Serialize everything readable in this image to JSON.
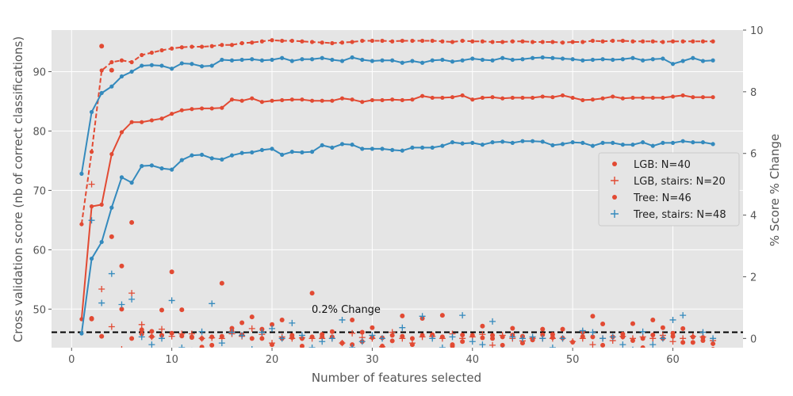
{
  "chart_data": {
    "type": "line",
    "xlabel": "Number of features selected",
    "ylabel": "Cross validation score (nb of correct classifications)",
    "y2label": "% Score % Change",
    "xlim": [
      -2,
      67
    ],
    "ylim": [
      43.5,
      97
    ],
    "y2lim": [
      -0.3,
      10
    ],
    "x_ticks": [
      0,
      10,
      20,
      30,
      40,
      50,
      60
    ],
    "y_ticks": [
      50,
      60,
      70,
      80,
      90
    ],
    "y2_ticks": [
      0,
      2,
      4,
      6,
      8,
      10
    ],
    "grid": true,
    "legend": {
      "position": "center-right",
      "entries": [
        {
          "label": "LGB: N=40",
          "marker": "dot",
          "color": "#E24A33"
        },
        {
          "label": "LGB, stairs: N=20",
          "marker": "plus",
          "color": "#E24A33"
        },
        {
          "label": "Tree: N=46",
          "marker": "dot",
          "color": "#E24A33"
        },
        {
          "label": "Tree, stairs: N=48",
          "marker": "plus",
          "color": "#348ABD"
        }
      ]
    },
    "reference_line": {
      "y2": 0.2,
      "label": "0.2% Change"
    },
    "x": [
      1,
      2,
      3,
      4,
      5,
      6,
      7,
      8,
      9,
      10,
      11,
      12,
      13,
      14,
      15,
      16,
      17,
      18,
      19,
      20,
      21,
      22,
      23,
      24,
      25,
      26,
      27,
      28,
      29,
      30,
      31,
      32,
      33,
      34,
      35,
      36,
      37,
      38,
      39,
      40,
      41,
      42,
      43,
      44,
      45,
      46,
      47,
      48,
      49,
      50,
      51,
      52,
      53,
      54,
      55,
      56,
      57,
      58,
      59,
      60,
      61,
      62,
      63,
      64
    ],
    "series": [
      {
        "name": "",
        "axis": "y",
        "color": "#E24A33",
        "style": "dashed",
        "values": [
          64.3,
          76.5,
          90.2,
          91.6,
          91.9,
          91.6,
          92.8,
          93.2,
          93.6,
          93.9,
          94.1,
          94.2,
          94.2,
          94.3,
          94.5,
          94.5,
          94.8,
          94.9,
          95.1,
          95.3,
          95.2,
          95.2,
          95.1,
          95.0,
          94.9,
          94.8,
          94.9,
          95.0,
          95.2,
          95.2,
          95.2,
          95.1,
          95.2,
          95.2,
          95.2,
          95.2,
          95.1,
          95.0,
          95.2,
          95.1,
          95.1,
          95.0,
          95.0,
          95.1,
          95.1,
          95.0,
          95.0,
          95.0,
          94.9,
          95.0,
          95.0,
          95.2,
          95.1,
          95.2,
          95.2,
          95.1,
          95.1,
          95.1,
          95.0,
          95.1,
          95.1,
          95.1,
          95.1,
          95.1
        ]
      },
      {
        "name": "",
        "axis": "y",
        "color": "#348ABD",
        "style": "solid",
        "values": [
          72.8,
          83.2,
          86.4,
          87.5,
          89.2,
          90.0,
          91.0,
          91.1,
          91.0,
          90.5,
          91.4,
          91.3,
          90.9,
          91.0,
          92.0,
          91.9,
          92.0,
          92.1,
          91.9,
          92.0,
          92.3,
          91.8,
          92.1,
          92.1,
          92.3,
          92.0,
          91.8,
          92.4,
          92.0,
          91.8,
          91.9,
          91.9,
          91.5,
          91.8,
          91.5,
          91.9,
          92.0,
          91.7,
          91.9,
          92.2,
          92.0,
          91.9,
          92.3,
          92.0,
          92.1,
          92.3,
          92.4,
          92.3,
          92.2,
          92.1,
          91.9,
          92.0,
          92.1,
          92.0,
          92.1,
          92.3,
          91.9,
          92.1,
          92.2,
          91.3,
          91.8,
          92.3,
          91.8,
          91.9
        ]
      },
      {
        "name": "",
        "axis": "y",
        "color": "#E24A33",
        "style": "solid",
        "values": [
          48.3,
          67.3,
          67.6,
          76.1,
          79.8,
          81.5,
          81.5,
          81.8,
          82.1,
          82.9,
          83.5,
          83.7,
          83.8,
          83.8,
          83.9,
          85.3,
          85.1,
          85.5,
          84.9,
          85.1,
          85.2,
          85.3,
          85.3,
          85.1,
          85.1,
          85.1,
          85.5,
          85.3,
          84.9,
          85.2,
          85.2,
          85.3,
          85.2,
          85.3,
          85.9,
          85.6,
          85.6,
          85.7,
          86.0,
          85.3,
          85.6,
          85.7,
          85.5,
          85.6,
          85.6,
          85.6,
          85.8,
          85.7,
          86.0,
          85.6,
          85.2,
          85.3,
          85.5,
          85.8,
          85.5,
          85.6,
          85.6,
          85.6,
          85.6,
          85.8,
          86.0,
          85.7,
          85.7,
          85.7
        ]
      },
      {
        "name": "",
        "axis": "y",
        "color": "#348ABD",
        "style": "solid",
        "values": [
          45.9,
          58.5,
          61.3,
          67.1,
          72.2,
          71.3,
          74.1,
          74.2,
          73.7,
          73.5,
          75.1,
          75.9,
          76.0,
          75.4,
          75.2,
          75.9,
          76.3,
          76.4,
          76.8,
          77.0,
          76.0,
          76.5,
          76.4,
          76.5,
          77.6,
          77.2,
          77.8,
          77.7,
          77.0,
          77.0,
          77.0,
          76.8,
          76.7,
          77.2,
          77.2,
          77.2,
          77.5,
          78.1,
          77.9,
          78.0,
          77.7,
          78.1,
          78.2,
          78.0,
          78.3,
          78.3,
          78.2,
          77.6,
          77.8,
          78.1,
          78.0,
          77.5,
          78.0,
          78.0,
          77.7,
          77.7,
          78.1,
          77.5,
          78.0,
          78.0,
          78.3,
          78.1,
          78.1,
          77.8
        ]
      },
      {
        "name": "LGB: N=40",
        "axis": "y2",
        "marker": "dot",
        "color": "#E24A33",
        "values": [
          null,
          0.63,
          9.48,
          8.7,
          0.95,
          0.0,
          0.15,
          0.06,
          0.1,
          0.17,
          0.08,
          0.05,
          -0.28,
          0.05,
          0.07,
          0.23,
          0.12,
          0.0,
          0.3,
          -0.2,
          0.0,
          0.03,
          0.0,
          0.05,
          0.13,
          0.05,
          -0.15,
          -0.2,
          0.2,
          0.03,
          0.02,
          -0.08,
          0.07,
          0.0,
          0.1,
          0.12,
          0.05,
          -0.2,
          -0.1,
          0.1,
          0.02,
          0.0,
          0.05,
          0.11,
          0.07,
          0.0,
          0.12,
          0.03,
          0.01,
          -0.12,
          0.06,
          0.05,
          -0.22,
          0.05,
          0.14,
          -0.07,
          0.0,
          0.11,
          0.0,
          0.07,
          -0.13,
          0.05,
          0.03,
          -0.17
        ]
      },
      {
        "name": "LGB, stairs: N=20",
        "axis": "y2",
        "marker": "plus",
        "color": "#E24A33",
        "values": [
          null,
          5.0,
          1.6,
          0.38,
          -0.35,
          1.47,
          0.45,
          0.05,
          0.3,
          0.07,
          0.15,
          0.15,
          0.0,
          0.02,
          0.0,
          0.15,
          0.07,
          0.32,
          0.13,
          -0.15,
          0.05,
          0.0,
          0.02,
          0.0,
          0.0,
          0.0,
          -0.15,
          0.17,
          0.03,
          0.0,
          -0.27,
          0.2,
          0.0,
          -0.15,
          0.05,
          0.07,
          0.0,
          0.15,
          0.0,
          0.05,
          0.13,
          -0.22,
          0.1,
          0.0,
          -0.08,
          0.0,
          0.0,
          0.0,
          0.0,
          -0.1,
          0.0,
          -0.2,
          0.0,
          -0.07,
          0.07,
          0.0,
          0.05,
          0.0,
          0.1,
          -0.1,
          0.0,
          0.07,
          0.05,
          -0.07
        ]
      },
      {
        "name": "Tree: N=46",
        "axis": "y2",
        "marker": "dot",
        "color": "#E24A33",
        "values": [
          null,
          0.65,
          0.07,
          3.3,
          2.35,
          3.76,
          0.28,
          0.23,
          0.92,
          2.16,
          0.93,
          0.03,
          0.0,
          -0.22,
          1.79,
          0.33,
          0.51,
          0.7,
          0.0,
          0.45,
          0.6,
          0.1,
          -0.25,
          1.47,
          0.05,
          0.22,
          -0.15,
          0.6,
          -0.1,
          0.35,
          -0.25,
          0.1,
          0.73,
          -0.2,
          0.65,
          0.1,
          0.75,
          -0.25,
          0.11,
          -0.38,
          0.4,
          0.1,
          -0.22,
          0.33,
          -0.15,
          -0.05,
          0.3,
          0.13,
          0.3,
          -0.4,
          0.2,
          0.72,
          0.47,
          -0.38,
          0.05,
          0.48,
          -0.3,
          0.6,
          0.35,
          0.17,
          0.32,
          -0.13,
          -0.07,
          -0.35
        ]
      },
      {
        "name": "Tree, stairs: N=48",
        "axis": "y2",
        "marker": "plus",
        "color": "#348ABD",
        "values": [
          null,
          3.83,
          1.15,
          2.1,
          1.1,
          1.27,
          0.05,
          -0.2,
          0.0,
          1.23,
          -0.3,
          -0.4,
          0.22,
          1.13,
          -0.15,
          0.2,
          0.1,
          -0.35,
          0.2,
          0.32,
          0.0,
          0.5,
          0.1,
          -0.3,
          -0.1,
          0.0,
          0.6,
          -0.3,
          -0.1,
          0.1,
          0.0,
          -0.4,
          0.35,
          -0.45,
          0.72,
          0.0,
          -0.3,
          0.05,
          0.75,
          -0.1,
          -0.2,
          0.55,
          -0.38,
          0.05,
          0.0,
          0.05,
          0.0,
          -0.3,
          0.0,
          -0.45,
          0.25,
          0.2,
          0.0,
          0.05,
          -0.2,
          -0.37,
          0.22,
          -0.2,
          0.0,
          0.6,
          0.75,
          -0.45,
          0.2,
          0.0
        ]
      }
    ]
  }
}
